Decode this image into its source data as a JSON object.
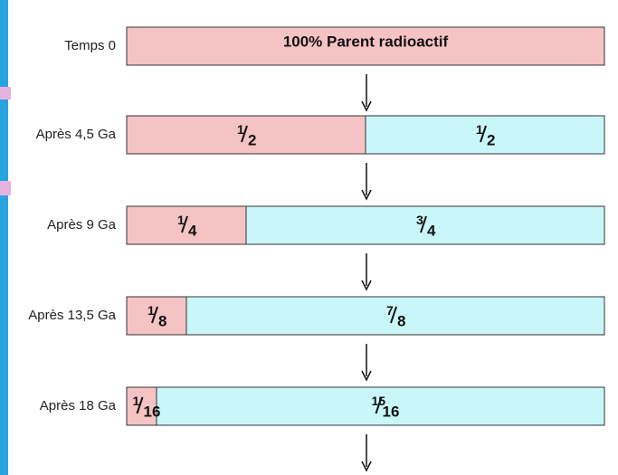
{
  "rows": [
    {
      "label": "Temps 0",
      "parent_text": "100% Parent radioactif"
    },
    {
      "label": "Après 4,5 Ga",
      "parent": {
        "num": 1,
        "den": 2
      },
      "daughter": {
        "num": 1,
        "den": 2
      }
    },
    {
      "label": "Après 9 Ga",
      "parent": {
        "num": 1,
        "den": 4
      },
      "daughter": {
        "num": 3,
        "den": 4
      }
    },
    {
      "label": "Après 13,5 Ga",
      "parent": {
        "num": 1,
        "den": 8
      },
      "daughter": {
        "num": 7,
        "den": 8
      }
    },
    {
      "label": "Après 18 Ga",
      "parent": {
        "num": 1,
        "den": 16
      },
      "daughter": {
        "num": 15,
        "den": 16
      }
    }
  ]
}
